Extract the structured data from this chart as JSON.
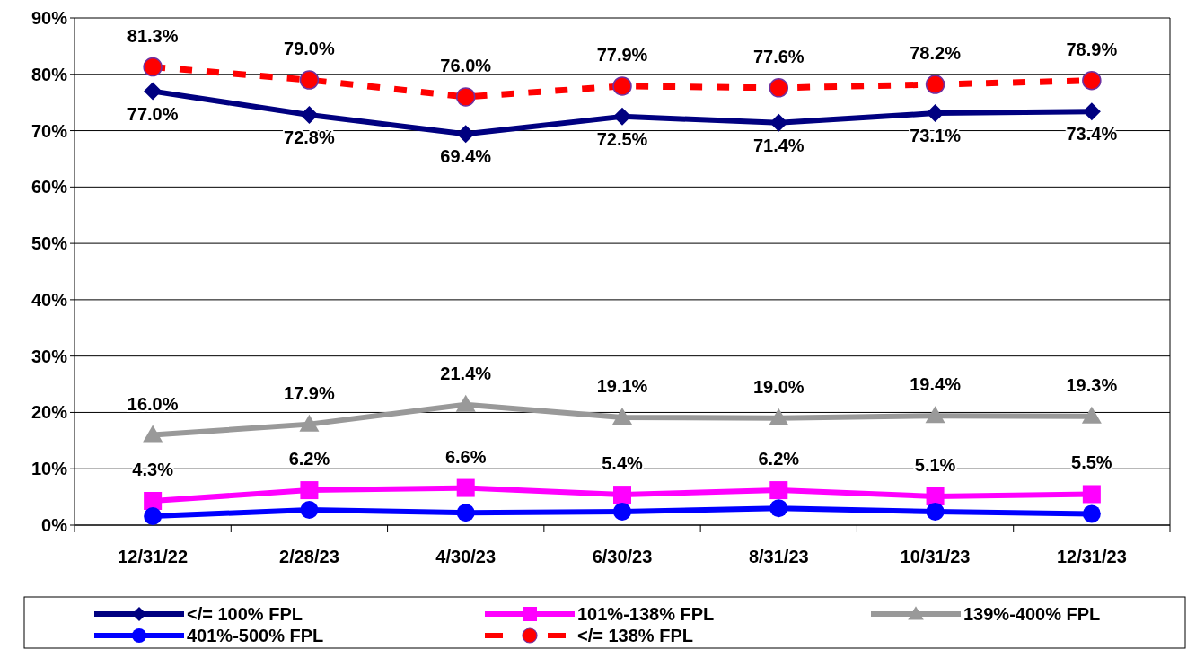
{
  "chart_data": {
    "type": "line",
    "categories": [
      "12/31/22",
      "2/28/23",
      "4/30/23",
      "6/30/23",
      "8/31/23",
      "10/31/23",
      "12/31/23"
    ],
    "ylim": [
      0,
      90
    ],
    "yticks": [
      {
        "value": 0,
        "label": "0%"
      },
      {
        "value": 10,
        "label": "10%"
      },
      {
        "value": 20,
        "label": "20%"
      },
      {
        "value": 30,
        "label": "30%"
      },
      {
        "value": 40,
        "label": "40%"
      },
      {
        "value": 50,
        "label": "50%"
      },
      {
        "value": 60,
        "label": "60%"
      },
      {
        "value": 70,
        "label": "70%"
      },
      {
        "value": 80,
        "label": "80%"
      },
      {
        "value": 90,
        "label": "90%"
      }
    ],
    "grid": "y",
    "legend": "bottom",
    "series": [
      {
        "name": "</= 100% FPL",
        "color": "#000080",
        "marker": "diamond",
        "line_style": "solid",
        "values": [
          77.0,
          72.8,
          69.4,
          72.5,
          71.4,
          73.1,
          73.4
        ],
        "value_labels": [
          "77.0%",
          "72.8%",
          "69.4%",
          "72.5%",
          "71.4%",
          "73.1%",
          "73.4%"
        ]
      },
      {
        "name": "101%-138% FPL",
        "color": "#ff00ff",
        "marker": "square",
        "line_style": "solid",
        "values": [
          4.3,
          6.2,
          6.6,
          5.4,
          6.2,
          5.1,
          5.5
        ],
        "value_labels": [
          "4.3%",
          "6.2%",
          "6.6%",
          "5.4%",
          "6.2%",
          "5.1%",
          "5.5%"
        ]
      },
      {
        "name": "139%-400% FPL",
        "color": "#999999",
        "marker": "triangle",
        "line_style": "solid",
        "values": [
          16.0,
          17.9,
          21.4,
          19.1,
          19.0,
          19.4,
          19.3
        ],
        "value_labels": [
          "16.0%",
          "17.9%",
          "21.4%",
          "19.1%",
          "19.0%",
          "19.4%",
          "19.3%"
        ]
      },
      {
        "name": "401%-500% FPL",
        "color": "#0000ff",
        "marker": "circle",
        "line_style": "solid",
        "values": [
          1.6,
          2.7,
          2.2,
          2.4,
          3.0,
          2.4,
          2.0
        ]
      },
      {
        "name": "</= 138% FPL",
        "color": "#ff0000",
        "marker": "circle",
        "line_style": "dashed",
        "values": [
          81.3,
          79.0,
          76.0,
          77.9,
          77.6,
          78.2,
          78.9
        ],
        "value_labels": [
          "81.3%",
          "79.0%",
          "76.0%",
          "77.9%",
          "77.6%",
          "78.2%",
          "78.9%"
        ]
      }
    ]
  }
}
